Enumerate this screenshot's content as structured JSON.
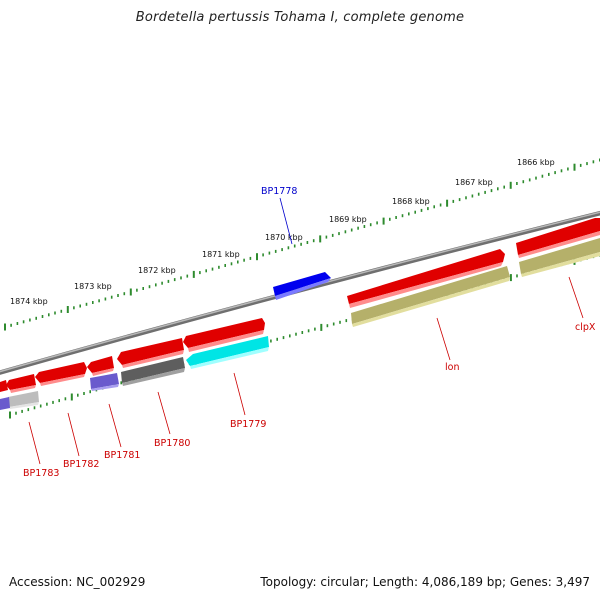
{
  "title": "Bordetella pertussis Tohama I, complete genome",
  "footer": {
    "accession": "Accession: NC_002929",
    "summary": "Topology: circular; Length: 4,086,189 bp; Genes: 3,497"
  },
  "colors": {
    "backbone": "#8a8a8a",
    "ruler_dots": "#2e8b2e",
    "forward_cds": "#e00000",
    "label_red": "#cc0000",
    "label_blue": "#0000cc",
    "blue": "#0000ee",
    "cyan": "#00e5e5",
    "olive": "#b5b06a",
    "dark_gray": "#666666",
    "light_gray": "#bdbdbd",
    "slate_blue": "#6a5acd"
  },
  "ruler_labels": [
    "1866 kbp",
    "1867 kbp",
    "1868 kbp",
    "1869 kbp",
    "1870 kbp",
    "1871 kbp",
    "1872 kbp",
    "1873 kbp",
    "1874 kbp"
  ],
  "gene_labels": [
    {
      "id": "BP1778",
      "text": "BP1778",
      "color": "blue"
    },
    {
      "id": "clpX",
      "text": "clpX",
      "color": "red"
    },
    {
      "id": "lon",
      "text": "lon",
      "color": "red"
    },
    {
      "id": "BP1779",
      "text": "BP1779",
      "color": "red"
    },
    {
      "id": "BP1780",
      "text": "BP1780",
      "color": "red"
    },
    {
      "id": "BP1781",
      "text": "BP1781",
      "color": "red"
    },
    {
      "id": "BP1782",
      "text": "BP1782",
      "color": "red"
    },
    {
      "id": "BP1783",
      "text": "BP1783",
      "color": "red"
    }
  ]
}
